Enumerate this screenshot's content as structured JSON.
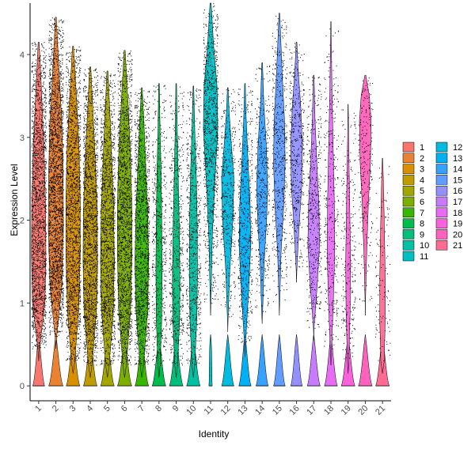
{
  "chart_data": {
    "type": "violin",
    "xlabel": "Identity",
    "ylabel": "Expression Level",
    "categories": [
      "1",
      "2",
      "3",
      "4",
      "5",
      "6",
      "7",
      "8",
      "9",
      "10",
      "11",
      "12",
      "13",
      "14",
      "15",
      "16",
      "17",
      "18",
      "19",
      "20",
      "21"
    ],
    "ylim": [
      -0.18,
      4.62
    ],
    "yticks": [
      0,
      1,
      2,
      3,
      4
    ],
    "legend_position": "right",
    "legend_columns": 2,
    "series": [
      {
        "name": "1",
        "color": "#F8766D",
        "max": 4.15,
        "dropout_width": 0.35,
        "body": [
          [
            0.45,
            0.05
          ],
          [
            1.0,
            0.36
          ],
          [
            1.6,
            0.42
          ],
          [
            2.2,
            0.4
          ],
          [
            2.8,
            0.32
          ],
          [
            3.4,
            0.2
          ],
          [
            4.15,
            0.03
          ]
        ],
        "points": 2500
      },
      {
        "name": "2",
        "color": "#EA8331",
        "max": 4.45,
        "dropout_width": 0.42,
        "body": [
          [
            0.6,
            0.05
          ],
          [
            1.2,
            0.34
          ],
          [
            1.9,
            0.44
          ],
          [
            2.6,
            0.42
          ],
          [
            3.2,
            0.34
          ],
          [
            3.8,
            0.18
          ],
          [
            4.45,
            0.03
          ]
        ],
        "points": 3000
      },
      {
        "name": "3",
        "color": "#D89000",
        "max": 4.1,
        "dropout_width": 0.4,
        "body": [
          [
            0.3,
            0.1
          ],
          [
            0.9,
            0.32
          ],
          [
            1.6,
            0.42
          ],
          [
            2.2,
            0.42
          ],
          [
            2.8,
            0.36
          ],
          [
            3.4,
            0.22
          ],
          [
            4.1,
            0.03
          ]
        ],
        "points": 2200
      },
      {
        "name": "4",
        "color": "#C09B00",
        "max": 3.85,
        "dropout_width": 0.4,
        "body": [
          [
            0.25,
            0.1
          ],
          [
            0.9,
            0.36
          ],
          [
            1.5,
            0.42
          ],
          [
            2.1,
            0.4
          ],
          [
            2.7,
            0.3
          ],
          [
            3.3,
            0.16
          ],
          [
            3.85,
            0.03
          ]
        ],
        "points": 2200
      },
      {
        "name": "5",
        "color": "#A3A500",
        "max": 3.8,
        "dropout_width": 0.4,
        "body": [
          [
            0.25,
            0.1
          ],
          [
            0.9,
            0.34
          ],
          [
            1.5,
            0.4
          ],
          [
            2.1,
            0.36
          ],
          [
            2.7,
            0.26
          ],
          [
            3.3,
            0.14
          ],
          [
            3.8,
            0.03
          ]
        ],
        "points": 2000
      },
      {
        "name": "6",
        "color": "#7CAE00",
        "max": 4.05,
        "dropout_width": 0.42,
        "body": [
          [
            0.25,
            0.1
          ],
          [
            0.9,
            0.34
          ],
          [
            1.6,
            0.42
          ],
          [
            2.2,
            0.42
          ],
          [
            2.8,
            0.34
          ],
          [
            3.4,
            0.2
          ],
          [
            4.05,
            0.03
          ]
        ],
        "points": 2200
      },
      {
        "name": "7",
        "color": "#39B600",
        "max": 3.6,
        "dropout_width": 0.4,
        "body": [
          [
            0.25,
            0.1
          ],
          [
            0.9,
            0.34
          ],
          [
            1.5,
            0.4
          ],
          [
            2.1,
            0.34
          ],
          [
            2.7,
            0.22
          ],
          [
            3.2,
            0.12
          ],
          [
            3.6,
            0.02
          ]
        ],
        "points": 1800
      },
      {
        "name": "8",
        "color": "#00BB4E",
        "max": 3.65,
        "dropout_width": 0.4,
        "body": [
          [
            0.25,
            0.06
          ],
          [
            0.8,
            0.16
          ],
          [
            1.4,
            0.18
          ],
          [
            2.0,
            0.16
          ],
          [
            2.6,
            0.12
          ],
          [
            3.1,
            0.06
          ],
          [
            3.65,
            0.02
          ]
        ],
        "points": 700
      },
      {
        "name": "9",
        "color": "#00BF7D",
        "max": 3.65,
        "dropout_width": 0.4,
        "body": [
          [
            0.25,
            0.08
          ],
          [
            0.8,
            0.2
          ],
          [
            1.3,
            0.22
          ],
          [
            1.9,
            0.18
          ],
          [
            2.5,
            0.12
          ],
          [
            3.1,
            0.06
          ],
          [
            3.65,
            0.02
          ]
        ],
        "points": 800
      },
      {
        "name": "10",
        "color": "#00C1A3",
        "max": 3.62,
        "dropout_width": 0.4,
        "body": [
          [
            0.25,
            0.08
          ],
          [
            0.8,
            0.2
          ],
          [
            1.4,
            0.24
          ],
          [
            2.0,
            0.22
          ],
          [
            2.6,
            0.16
          ],
          [
            3.1,
            0.08
          ],
          [
            3.62,
            0.02
          ]
        ],
        "points": 900
      },
      {
        "name": "11",
        "color": "#00BFC4",
        "max": 4.62,
        "dropout_width": 0.1,
        "body": [
          [
            1.0,
            0.02
          ],
          [
            1.8,
            0.1
          ],
          [
            2.5,
            0.26
          ],
          [
            3.1,
            0.42
          ],
          [
            3.6,
            0.38
          ],
          [
            4.1,
            0.18
          ],
          [
            4.62,
            0.03
          ]
        ],
        "points": 1500
      },
      {
        "name": "12",
        "color": "#00BAE0",
        "max": 3.6,
        "dropout_width": 0.36,
        "body": [
          [
            0.8,
            0.02
          ],
          [
            1.4,
            0.12
          ],
          [
            2.0,
            0.3
          ],
          [
            2.5,
            0.36
          ],
          [
            3.0,
            0.18
          ],
          [
            3.3,
            0.08
          ],
          [
            3.6,
            0.02
          ]
        ],
        "points": 700
      },
      {
        "name": "13",
        "color": "#00B0F6",
        "max": 3.65,
        "dropout_width": 0.36,
        "body": [
          [
            0.5,
            0.03
          ],
          [
            1.1,
            0.2
          ],
          [
            1.7,
            0.34
          ],
          [
            2.2,
            0.3
          ],
          [
            2.8,
            0.16
          ],
          [
            3.3,
            0.06
          ],
          [
            3.65,
            0.02
          ]
        ],
        "points": 800
      },
      {
        "name": "14",
        "color": "#35A2FF",
        "max": 3.9,
        "dropout_width": 0.36,
        "body": [
          [
            0.9,
            0.03
          ],
          [
            1.5,
            0.12
          ],
          [
            2.0,
            0.26
          ],
          [
            2.4,
            0.32
          ],
          [
            2.9,
            0.24
          ],
          [
            3.4,
            0.1
          ],
          [
            3.9,
            0.02
          ]
        ],
        "points": 700
      },
      {
        "name": "15",
        "color": "#619CFF",
        "max": 4.5,
        "dropout_width": 0.34,
        "body": [
          [
            1.0,
            0.02
          ],
          [
            1.6,
            0.1
          ],
          [
            2.2,
            0.26
          ],
          [
            2.7,
            0.34
          ],
          [
            3.2,
            0.3
          ],
          [
            3.8,
            0.16
          ],
          [
            4.5,
            0.02
          ]
        ],
        "points": 800
      },
      {
        "name": "16",
        "color": "#9590FF",
        "max": 4.15,
        "dropout_width": 0.34,
        "body": [
          [
            1.4,
            0.02
          ],
          [
            1.9,
            0.14
          ],
          [
            2.4,
            0.3
          ],
          [
            2.9,
            0.34
          ],
          [
            3.4,
            0.24
          ],
          [
            3.8,
            0.1
          ],
          [
            4.15,
            0.02
          ]
        ],
        "points": 700
      },
      {
        "name": "17",
        "color": "#C77CFF",
        "max": 3.75,
        "dropout_width": 0.38,
        "body": [
          [
            0.7,
            0.02
          ],
          [
            1.2,
            0.2
          ],
          [
            1.7,
            0.34
          ],
          [
            2.2,
            0.3
          ],
          [
            2.7,
            0.18
          ],
          [
            3.2,
            0.08
          ],
          [
            3.75,
            0.02
          ]
        ],
        "points": 700
      },
      {
        "name": "18",
        "color": "#E76BF3",
        "max": 4.4,
        "dropout_width": 0.38,
        "body": [
          [
            0.4,
            0.03
          ],
          [
            1.0,
            0.14
          ],
          [
            1.6,
            0.22
          ],
          [
            2.2,
            0.2
          ],
          [
            2.8,
            0.14
          ],
          [
            3.6,
            0.06
          ],
          [
            4.4,
            0.01
          ]
        ],
        "points": 500
      },
      {
        "name": "19",
        "color": "#FA62DB",
        "max": 3.4,
        "dropout_width": 0.4,
        "body": [
          [
            0.3,
            0.04
          ],
          [
            0.9,
            0.12
          ],
          [
            1.5,
            0.14
          ],
          [
            2.1,
            0.1
          ],
          [
            2.6,
            0.06
          ],
          [
            3.0,
            0.03
          ],
          [
            3.4,
            0.01
          ]
        ],
        "points": 350
      },
      {
        "name": "20",
        "color": "#FF62BC",
        "max": 3.75,
        "dropout_width": 0.4,
        "body": [
          [
            1.0,
            0.01
          ],
          [
            1.6,
            0.08
          ],
          [
            2.2,
            0.18
          ],
          [
            2.7,
            0.3
          ],
          [
            3.2,
            0.34
          ],
          [
            3.5,
            0.24
          ],
          [
            3.75,
            0.03
          ]
        ],
        "points": 400
      },
      {
        "name": "21",
        "color": "#FF6C91",
        "max": 2.75,
        "dropout_width": 0.4,
        "body": [
          [
            0.3,
            0.1
          ],
          [
            0.8,
            0.16
          ],
          [
            1.3,
            0.16
          ],
          [
            1.8,
            0.12
          ],
          [
            2.2,
            0.08
          ],
          [
            2.5,
            0.05
          ],
          [
            2.75,
            0.01
          ]
        ],
        "points": 150
      }
    ]
  }
}
